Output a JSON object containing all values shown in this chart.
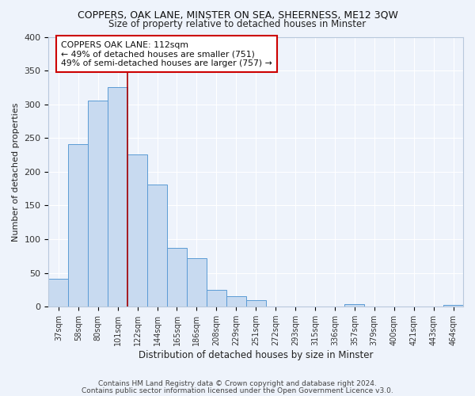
{
  "title": "COPPERS, OAK LANE, MINSTER ON SEA, SHEERNESS, ME12 3QW",
  "subtitle": "Size of property relative to detached houses in Minster",
  "xlabel": "Distribution of detached houses by size in Minster",
  "ylabel": "Number of detached properties",
  "categories": [
    "37sqm",
    "58sqm",
    "80sqm",
    "101sqm",
    "122sqm",
    "144sqm",
    "165sqm",
    "186sqm",
    "208sqm",
    "229sqm",
    "251sqm",
    "272sqm",
    "293sqm",
    "315sqm",
    "336sqm",
    "357sqm",
    "379sqm",
    "400sqm",
    "421sqm",
    "443sqm",
    "464sqm"
  ],
  "values": [
    41,
    241,
    305,
    325,
    226,
    181,
    87,
    72,
    25,
    16,
    10,
    0,
    0,
    0,
    0,
    4,
    0,
    0,
    0,
    0,
    3
  ],
  "bar_color": "#c8daf0",
  "bar_edge_color": "#5b9bd5",
  "background_color": "#eef3fb",
  "grid_color": "#ffffff",
  "vline_x": 3.5,
  "vline_color": "#aa0000",
  "annotation_text": "COPPERS OAK LANE: 112sqm\n← 49% of detached houses are smaller (751)\n49% of semi-detached houses are larger (757) →",
  "annotation_box_color": "#ffffff",
  "annotation_box_edge": "#cc0000",
  "ylim": [
    0,
    400
  ],
  "yticks": [
    0,
    50,
    100,
    150,
    200,
    250,
    300,
    350,
    400
  ],
  "footer1": "Contains HM Land Registry data © Crown copyright and database right 2024.",
  "footer2": "Contains public sector information licensed under the Open Government Licence v3.0."
}
